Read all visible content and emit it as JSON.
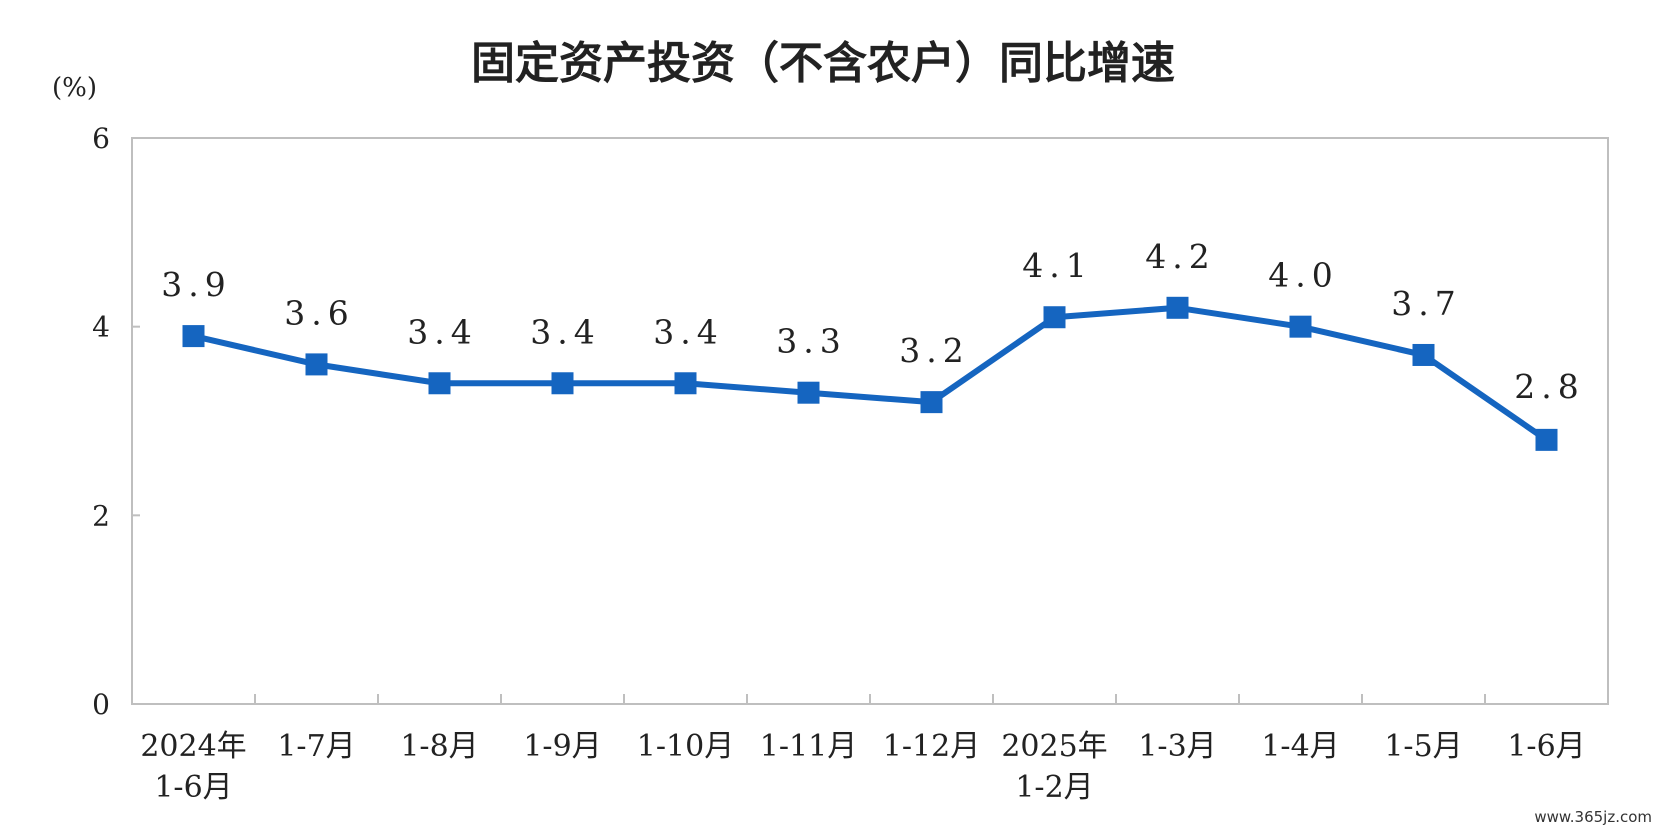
{
  "chart_data": {
    "type": "line",
    "title": "固定资产投资（不含农户）同比增速",
    "ylabel": "(%)",
    "xlabel": "",
    "ylim": [
      0,
      6
    ],
    "yticks": [
      "0",
      "2",
      "4",
      "6"
    ],
    "grid": false,
    "categories": [
      [
        "2024年",
        "1-6月"
      ],
      [
        "1-7月"
      ],
      [
        "1-8月"
      ],
      [
        "1-9月"
      ],
      [
        "1-10月"
      ],
      [
        "1-11月"
      ],
      [
        "1-12月"
      ],
      [
        "2025年",
        "1-2月"
      ],
      [
        "1-3月"
      ],
      [
        "1-4月"
      ],
      [
        "1-5月"
      ],
      [
        "1-6月"
      ]
    ],
    "series": [
      {
        "values": [
          3.9,
          3.6,
          3.4,
          3.4,
          3.4,
          3.3,
          3.2,
          4.1,
          4.2,
          4.0,
          3.7,
          2.8
        ],
        "labels": [
          "3.9",
          "3.6",
          "3.4",
          "3.4",
          "3.4",
          "3.3",
          "3.2",
          "4.1",
          "4.2",
          "4.0",
          "3.7",
          "2.8"
        ],
        "color": "#1565c0"
      }
    ]
  },
  "watermark": "www.365jz.com"
}
